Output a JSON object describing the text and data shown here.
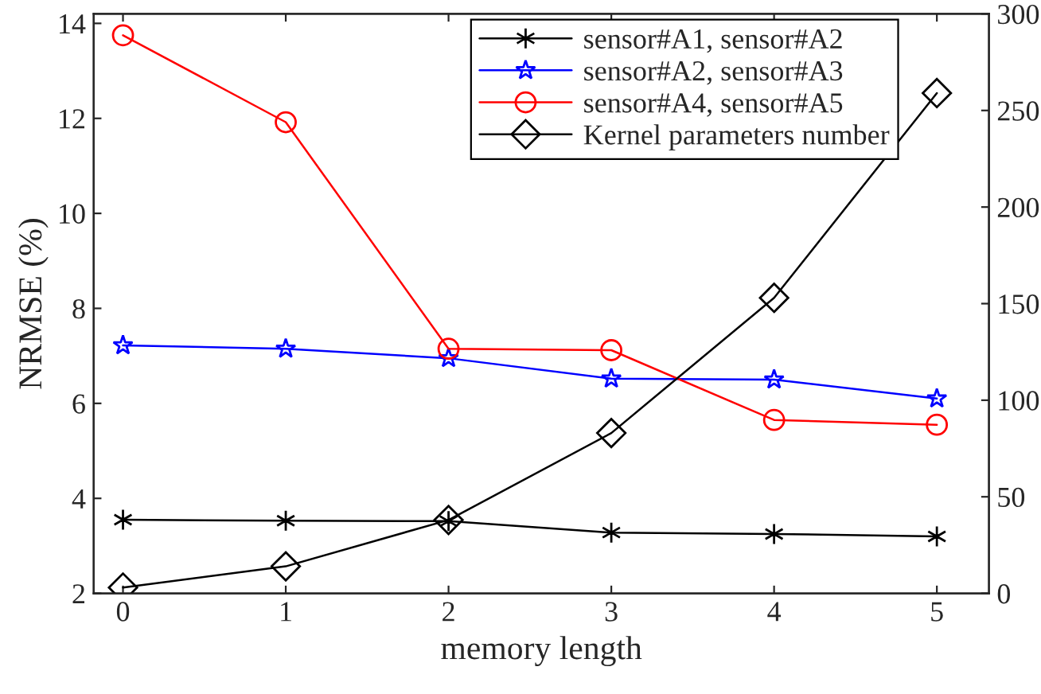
{
  "chart_data": {
    "type": "line",
    "xlabel": "memory length",
    "ylabel": "NRMSE (%)",
    "x": [
      0,
      1,
      2,
      3,
      4,
      5
    ],
    "xlim": [
      -0.18,
      5.32
    ],
    "xticks": [
      0,
      1,
      2,
      3,
      4,
      5
    ],
    "ylim": [
      2,
      14.2
    ],
    "yticks": [
      2,
      4,
      6,
      8,
      10,
      12,
      14
    ],
    "y2lim": [
      0,
      300
    ],
    "y2ticks": [
      0,
      50,
      100,
      150,
      200,
      250,
      300
    ],
    "legend": "top right",
    "grid": false,
    "line_style": "solid",
    "series": [
      {
        "name": "sensor#A1, sensor#A2",
        "color": "#000000",
        "marker": "cross",
        "values": [
          3.55,
          3.53,
          3.52,
          3.28,
          3.25,
          3.2
        ]
      },
      {
        "name": "sensor#A2, sensor#A3",
        "color": "#0000ff",
        "marker": "star",
        "values": [
          7.22,
          7.15,
          6.95,
          6.52,
          6.5,
          6.1
        ]
      },
      {
        "name": "sensor#A4, sensor#A5",
        "color": "#ff0000",
        "marker": "circle",
        "values": [
          13.75,
          11.92,
          7.15,
          7.12,
          5.65,
          5.55
        ]
      },
      {
        "name": "Kernel parameters number",
        "color": "#000000",
        "marker": "diamond",
        "axis": "y2",
        "values": [
          3,
          14,
          38,
          83,
          153,
          259
        ]
      }
    ]
  }
}
